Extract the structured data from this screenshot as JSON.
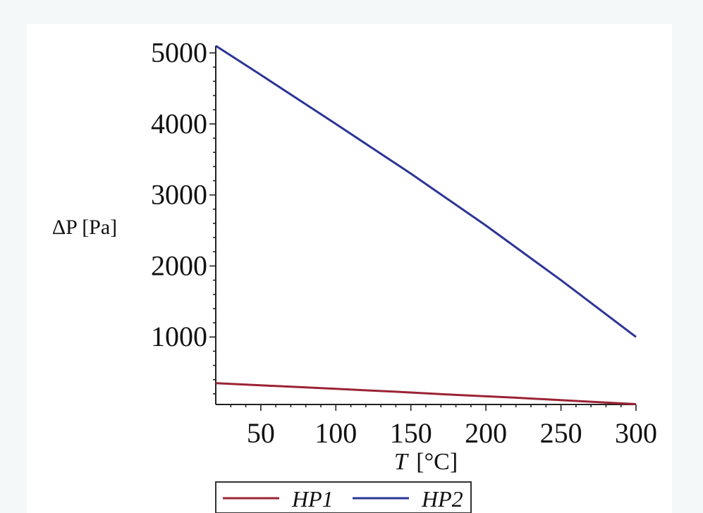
{
  "chart_data": {
    "type": "line",
    "title": "",
    "xlabel_var": "T",
    "xlabel_unit": "[°C]",
    "ylabel": "ΔP [Pa]",
    "xlim": [
      20,
      300
    ],
    "ylim": [
      50,
      5100
    ],
    "x_ticks": [
      50,
      100,
      150,
      200,
      250,
      300
    ],
    "x_tick_labels": [
      "50",
      "100",
      "150",
      "200",
      "250",
      "300"
    ],
    "y_ticks": [
      1000,
      2000,
      3000,
      4000,
      5000
    ],
    "y_tick_labels": [
      "1000",
      "2000",
      "3000",
      "4000",
      "5000"
    ],
    "grid": false,
    "legend_position": "bottom",
    "series": [
      {
        "name": "HP1",
        "color": "#9b2335",
        "x": [
          20,
          60,
          100,
          140,
          180,
          220,
          260,
          300
        ],
        "y": [
          350,
          310,
          270,
          230,
          185,
          145,
          100,
          55
        ]
      },
      {
        "name": "HP2",
        "color": "#2b3596",
        "x": [
          20,
          50,
          100,
          150,
          200,
          250,
          300
        ],
        "y": [
          5100,
          4690,
          4000,
          3300,
          2570,
          1800,
          1000
        ]
      }
    ]
  }
}
